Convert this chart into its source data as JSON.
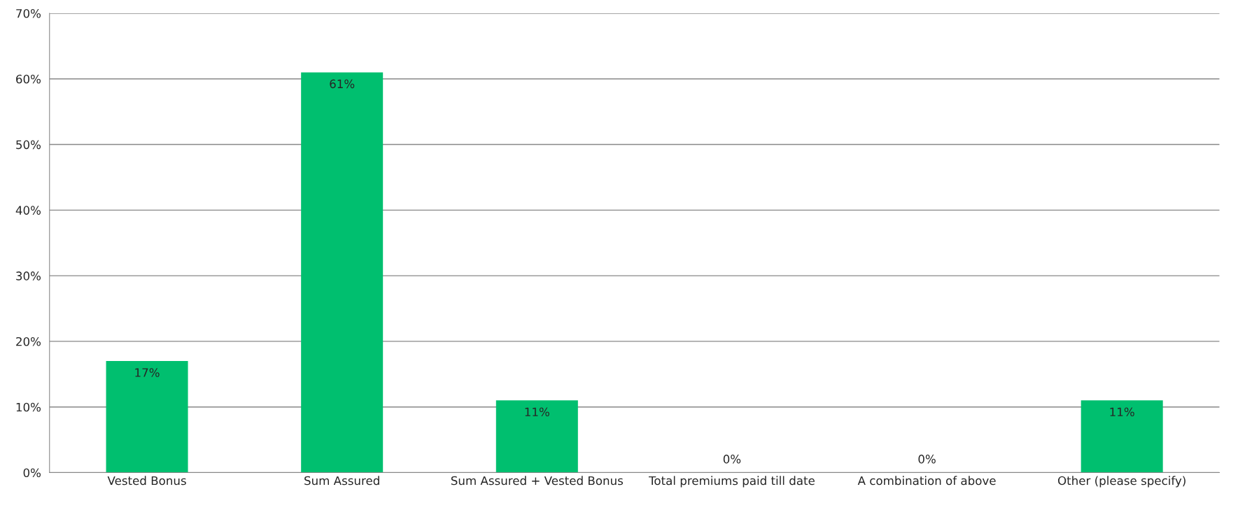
{
  "chart_data": {
    "type": "bar",
    "categories": [
      "Vested Bonus",
      "Sum Assured",
      "Sum Assured + Vested Bonus",
      "Total premiums paid till date",
      "A combination of above",
      "Other (please specify)"
    ],
    "values": [
      17,
      61,
      11,
      0,
      0,
      11
    ],
    "value_labels": [
      "17%",
      "61%",
      "11%",
      "0%",
      "0%",
      "11%"
    ],
    "color": "#00bf6f",
    "ylim": [
      0,
      70
    ],
    "yticks": [
      {
        "value": 0,
        "label": "0%"
      },
      {
        "value": 10,
        "label": "10%"
      },
      {
        "value": 20,
        "label": "20%"
      },
      {
        "value": 30,
        "label": "30%"
      },
      {
        "value": 40,
        "label": "40%"
      },
      {
        "value": 50,
        "label": "50%"
      },
      {
        "value": 60,
        "label": "60%"
      },
      {
        "value": 70,
        "label": "70%"
      }
    ],
    "grid": "y",
    "legend": false
  }
}
